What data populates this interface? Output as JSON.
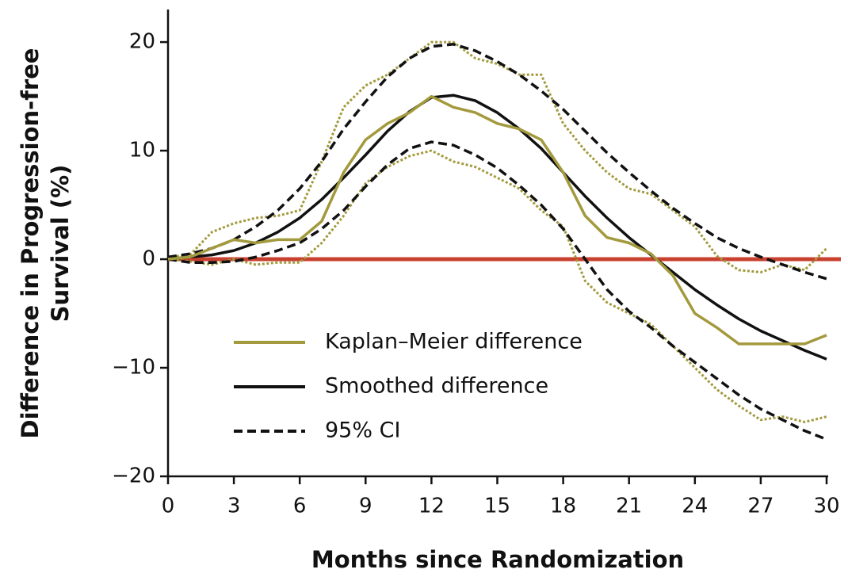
{
  "chart_data": {
    "type": "line",
    "xlabel": "Months since Randomization",
    "ylabel": [
      "Difference in Progression-free",
      "Survival (%)"
    ],
    "xlim": [
      0,
      30
    ],
    "ylim": [
      -20,
      23
    ],
    "xticks": [
      0,
      3,
      6,
      9,
      12,
      15,
      18,
      21,
      24,
      27,
      30
    ],
    "yticks": [
      {
        "value": -20,
        "label": "−20"
      },
      {
        "value": -10,
        "label": "−10"
      },
      0,
      10,
      20
    ],
    "reference_line": {
      "value": 0,
      "color": "#c8412f"
    },
    "x": [
      0,
      1,
      2,
      3,
      4,
      5,
      6,
      7,
      8,
      9,
      10,
      11,
      12,
      13,
      14,
      15,
      16,
      17,
      18,
      19,
      20,
      21,
      22,
      23,
      24,
      25,
      26,
      27,
      28,
      29,
      30
    ],
    "series": [
      {
        "name": "Kaplan–Meier difference",
        "color": "#a39a3e",
        "style": "solid",
        "values": [
          0,
          0.2,
          1,
          1.8,
          1.5,
          1.8,
          1.8,
          3.5,
          8,
          11,
          12.5,
          13.5,
          15,
          14,
          13.5,
          12.5,
          12,
          11,
          8,
          4,
          2,
          1.5,
          0.5,
          -1.5,
          -5,
          -6.3,
          -7.8,
          -7.8,
          -7.8,
          -7.8,
          -7
        ]
      },
      {
        "name": "Smoothed difference",
        "color": "#111111",
        "style": "solid",
        "values": [
          0,
          0.2,
          0.4,
          0.8,
          1.5,
          2.5,
          3.8,
          5.5,
          7.5,
          9.6,
          11.8,
          13.6,
          14.9,
          15.1,
          14.6,
          13.5,
          12,
          10.2,
          8,
          5.8,
          3.8,
          2,
          0.4,
          -1.2,
          -2.8,
          -4.2,
          -5.5,
          -6.6,
          -7.5,
          -8.4,
          -9.2
        ]
      },
      {
        "name": "95% CI",
        "color": "#111111",
        "style": "dashed",
        "values": [
          0.2,
          0.5,
          1,
          1.8,
          3,
          4.5,
          6.5,
          9,
          12,
          14.5,
          16.8,
          18.5,
          19.6,
          19.8,
          19.2,
          18.2,
          17,
          15.5,
          13.8,
          11.8,
          9.8,
          8,
          6.3,
          4.7,
          3.3,
          2,
          1,
          0.2,
          -0.5,
          -1.2,
          -1.8
        ]
      },
      {
        "color": "#111111",
        "style": "dashed",
        "values": [
          0,
          -0.3,
          -0.3,
          -0.2,
          0.2,
          0.8,
          1.5,
          2.8,
          4.5,
          6.7,
          8.7,
          10.2,
          10.8,
          10.5,
          9.6,
          8.4,
          6.8,
          5,
          2.8,
          0,
          -2.8,
          -4.8,
          -6.3,
          -8,
          -9.5,
          -11,
          -12.5,
          -13.8,
          -14.8,
          -15.8,
          -16.6
        ]
      },
      {
        "color": "#a39a3e",
        "style": "dotted",
        "values": [
          0.2,
          0.4,
          2.5,
          3.3,
          3.8,
          4,
          4.5,
          9,
          14,
          16,
          17,
          18.5,
          20,
          20,
          18.5,
          18,
          17,
          17,
          12.5,
          10,
          8,
          6.5,
          6,
          4.5,
          3,
          0.3,
          -1,
          -1.2,
          -0.5,
          -1,
          1
        ]
      },
      {
        "color": "#a39a3e",
        "style": "dotted",
        "values": [
          0,
          -0.2,
          -0.5,
          0,
          -0.5,
          -0.3,
          -0.3,
          1.5,
          4,
          7,
          8.5,
          9.5,
          10,
          9,
          8.5,
          7.5,
          6.5,
          4.5,
          3,
          -2,
          -4,
          -5,
          -6,
          -8,
          -10,
          -12,
          -13.5,
          -14.8,
          -14.5,
          -15,
          -14.5
        ]
      }
    ]
  }
}
